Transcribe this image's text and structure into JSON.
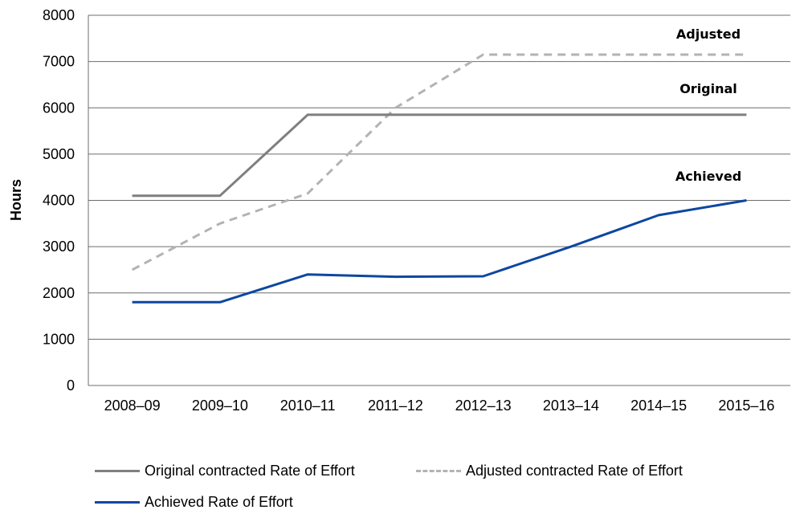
{
  "chart_data": {
    "type": "line",
    "title": "",
    "xlabel": "",
    "ylabel": "Hours",
    "ylim": [
      0,
      8000
    ],
    "yticks": [
      0,
      1000,
      2000,
      3000,
      4000,
      5000,
      6000,
      7000,
      8000
    ],
    "categories": [
      "2008–09",
      "2009–10",
      "2010–11",
      "2011–12",
      "2012–13",
      "2013–14",
      "2014–15",
      "2015–16"
    ],
    "grid": "horizontal",
    "legend_position": "bottom",
    "series": [
      {
        "name": "Original contracted Rate of Effort",
        "key": "original",
        "color": "#7f7f7f",
        "dashed": false,
        "annotation": "Original",
        "values": [
          4100,
          4100,
          5850,
          5850,
          5850,
          5850,
          5850,
          5850
        ]
      },
      {
        "name": "Adjusted contracted Rate of Effort",
        "key": "adjusted",
        "color": "#b3b3b3",
        "dashed": true,
        "annotation": "Adjusted",
        "values": [
          2500,
          3500,
          4150,
          6000,
          7150,
          7150,
          7150,
          7150
        ]
      },
      {
        "name": "Achieved Rate of Effort",
        "key": "achieved",
        "color": "#0d47a1",
        "dashed": false,
        "annotation": "Achieved",
        "values": [
          1800,
          1800,
          2400,
          2350,
          2360,
          3000,
          3680,
          4000
        ]
      }
    ]
  }
}
